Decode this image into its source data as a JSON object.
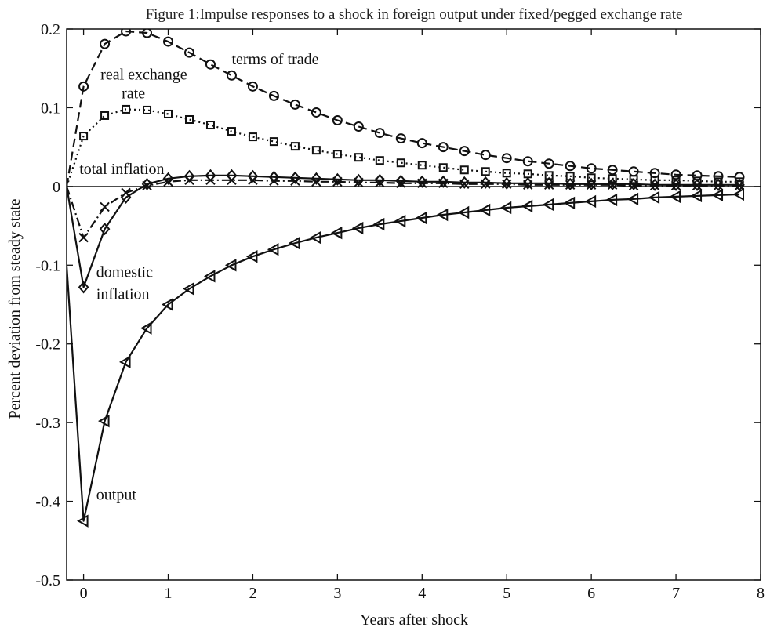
{
  "chart_data": {
    "type": "line",
    "title": "Figure 1:Impulse responses to a shock in foreign output under fixed/pegged exchange rate",
    "xlabel": "Years after shock",
    "ylabel": "Percent deviation from steady state",
    "xlim": [
      -0.2,
      8
    ],
    "ylim": [
      -0.5,
      0.2
    ],
    "xticks": [
      "0",
      "1",
      "2",
      "3",
      "4",
      "5",
      "6",
      "7",
      "8"
    ],
    "yticks": [
      "0.2",
      "0.1",
      "0",
      "-0.1",
      "-0.2",
      "-0.3",
      "-0.4",
      "-0.5"
    ],
    "grid": false,
    "zero_line": true,
    "x": [
      0,
      0.25,
      0.5,
      0.75,
      1,
      1.25,
      1.5,
      1.75,
      2,
      2.25,
      2.5,
      2.75,
      3,
      3.25,
      3.5,
      3.75,
      4,
      4.25,
      4.5,
      4.75,
      5,
      5.25,
      5.5,
      5.75,
      6,
      6.25,
      6.5,
      6.75,
      7,
      7.25,
      7.5,
      7.75
    ],
    "series": [
      {
        "name": "terms of trade",
        "marker": "circle",
        "dash": "dashed",
        "start": 0.0,
        "values": [
          0.127,
          0.181,
          0.197,
          0.195,
          0.184,
          0.17,
          0.155,
          0.141,
          0.127,
          0.115,
          0.104,
          0.094,
          0.084,
          0.076,
          0.068,
          0.061,
          0.055,
          0.05,
          0.045,
          0.04,
          0.036,
          0.032,
          0.029,
          0.026,
          0.023,
          0.021,
          0.019,
          0.017,
          0.015,
          0.014,
          0.013,
          0.012
        ]
      },
      {
        "name": "real exchange rate",
        "marker": "square",
        "dash": "dotted",
        "start": 0.0,
        "values": [
          0.064,
          0.09,
          0.098,
          0.097,
          0.092,
          0.085,
          0.078,
          0.07,
          0.063,
          0.057,
          0.051,
          0.046,
          0.041,
          0.037,
          0.033,
          0.03,
          0.027,
          0.024,
          0.021,
          0.019,
          0.017,
          0.016,
          0.014,
          0.013,
          0.011,
          0.01,
          0.009,
          0.008,
          0.008,
          0.007,
          0.006,
          0.006
        ]
      },
      {
        "name": "total inflation",
        "marker": "x",
        "dash": "dashdot",
        "start": 0.0,
        "values": [
          -0.065,
          -0.026,
          -0.008,
          0.001,
          0.006,
          0.008,
          0.008,
          0.008,
          0.008,
          0.007,
          0.007,
          0.006,
          0.006,
          0.005,
          0.005,
          0.004,
          0.004,
          0.004,
          0.003,
          0.003,
          0.003,
          0.002,
          0.002,
          0.002,
          0.002,
          0.002,
          0.001,
          0.001,
          0.001,
          0.001,
          0.001,
          0.001
        ]
      },
      {
        "name": "domestic inflation",
        "marker": "diamond",
        "dash": "solid",
        "start": 0.0,
        "values": [
          -0.128,
          -0.054,
          -0.014,
          0.003,
          0.01,
          0.013,
          0.014,
          0.014,
          0.013,
          0.012,
          0.011,
          0.01,
          0.009,
          0.008,
          0.008,
          0.007,
          0.006,
          0.006,
          0.005,
          0.005,
          0.004,
          0.004,
          0.004,
          0.003,
          0.003,
          0.003,
          0.003,
          0.002,
          0.002,
          0.002,
          0.002,
          0.002
        ]
      },
      {
        "name": "output",
        "marker": "triangle-left",
        "dash": "solid",
        "start": -0.1,
        "values": [
          -0.425,
          -0.298,
          -0.223,
          -0.18,
          -0.15,
          -0.13,
          -0.114,
          -0.1,
          -0.089,
          -0.08,
          -0.072,
          -0.065,
          -0.059,
          -0.053,
          -0.048,
          -0.044,
          -0.04,
          -0.036,
          -0.033,
          -0.03,
          -0.027,
          -0.025,
          -0.023,
          -0.021,
          -0.019,
          -0.017,
          -0.016,
          -0.014,
          -0.013,
          -0.012,
          -0.011,
          -0.01
        ]
      }
    ],
    "annotations": [
      {
        "text": "terms of trade",
        "x": 1.75,
        "y": 0.155
      },
      {
        "text": "real exchange",
        "x": 0.2,
        "y": 0.136
      },
      {
        "text": "rate",
        "x": 0.45,
        "y": 0.112
      },
      {
        "text": "total inflation",
        "x": -0.05,
        "y": 0.016
      },
      {
        "text": "domestic",
        "x": 0.15,
        "y": -0.115
      },
      {
        "text": "inflation",
        "x": 0.15,
        "y": -0.143
      },
      {
        "text": "output",
        "x": 0.15,
        "y": -0.398
      }
    ]
  }
}
